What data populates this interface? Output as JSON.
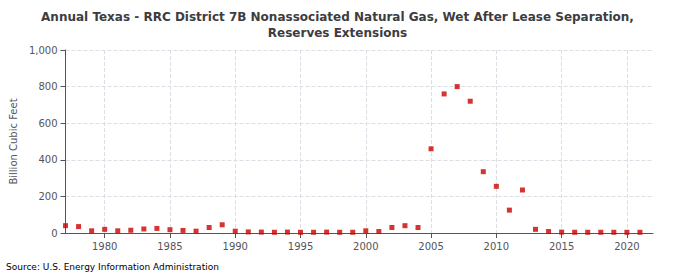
{
  "chart_data": {
    "type": "scatter",
    "title": "Annual Texas - RRC District 7B Nonassociated Natural Gas, Wet After Lease Separation,\nReserves Extensions",
    "ylabel": "Billion Cubic Feet",
    "annotation": "Source: U.S. Energy Information Administration",
    "x": [
      1977,
      1978,
      1979,
      1980,
      1981,
      1982,
      1983,
      1984,
      1985,
      1986,
      1987,
      1988,
      1989,
      1990,
      1991,
      1992,
      1993,
      1994,
      1995,
      1996,
      1997,
      1998,
      1999,
      2000,
      2001,
      2002,
      2003,
      2004,
      2005,
      2006,
      2007,
      2008,
      2009,
      2010,
      2011,
      2012,
      2013,
      2014,
      2015,
      2016,
      2017,
      2018,
      2019,
      2020,
      2021
    ],
    "values": [
      40,
      35,
      12,
      20,
      12,
      15,
      22,
      25,
      18,
      14,
      10,
      30,
      45,
      10,
      6,
      5,
      4,
      5,
      4,
      4,
      5,
      4,
      4,
      12,
      8,
      30,
      40,
      30,
      460,
      760,
      800,
      720,
      335,
      255,
      125,
      235,
      20,
      8,
      5,
      4,
      4,
      4,
      4,
      4,
      4
    ],
    "color": "#cc0000",
    "marker": "square",
    "xlim": [
      1977,
      2022
    ],
    "xticks": [
      1980,
      1985,
      1990,
      1995,
      2000,
      2005,
      2010,
      2015,
      2020
    ],
    "ylim": [
      0,
      1000
    ],
    "yticks": [
      0,
      200,
      400,
      600,
      800,
      {
        "value": 1000,
        "label": "1,000"
      }
    ],
    "grid": true
  }
}
